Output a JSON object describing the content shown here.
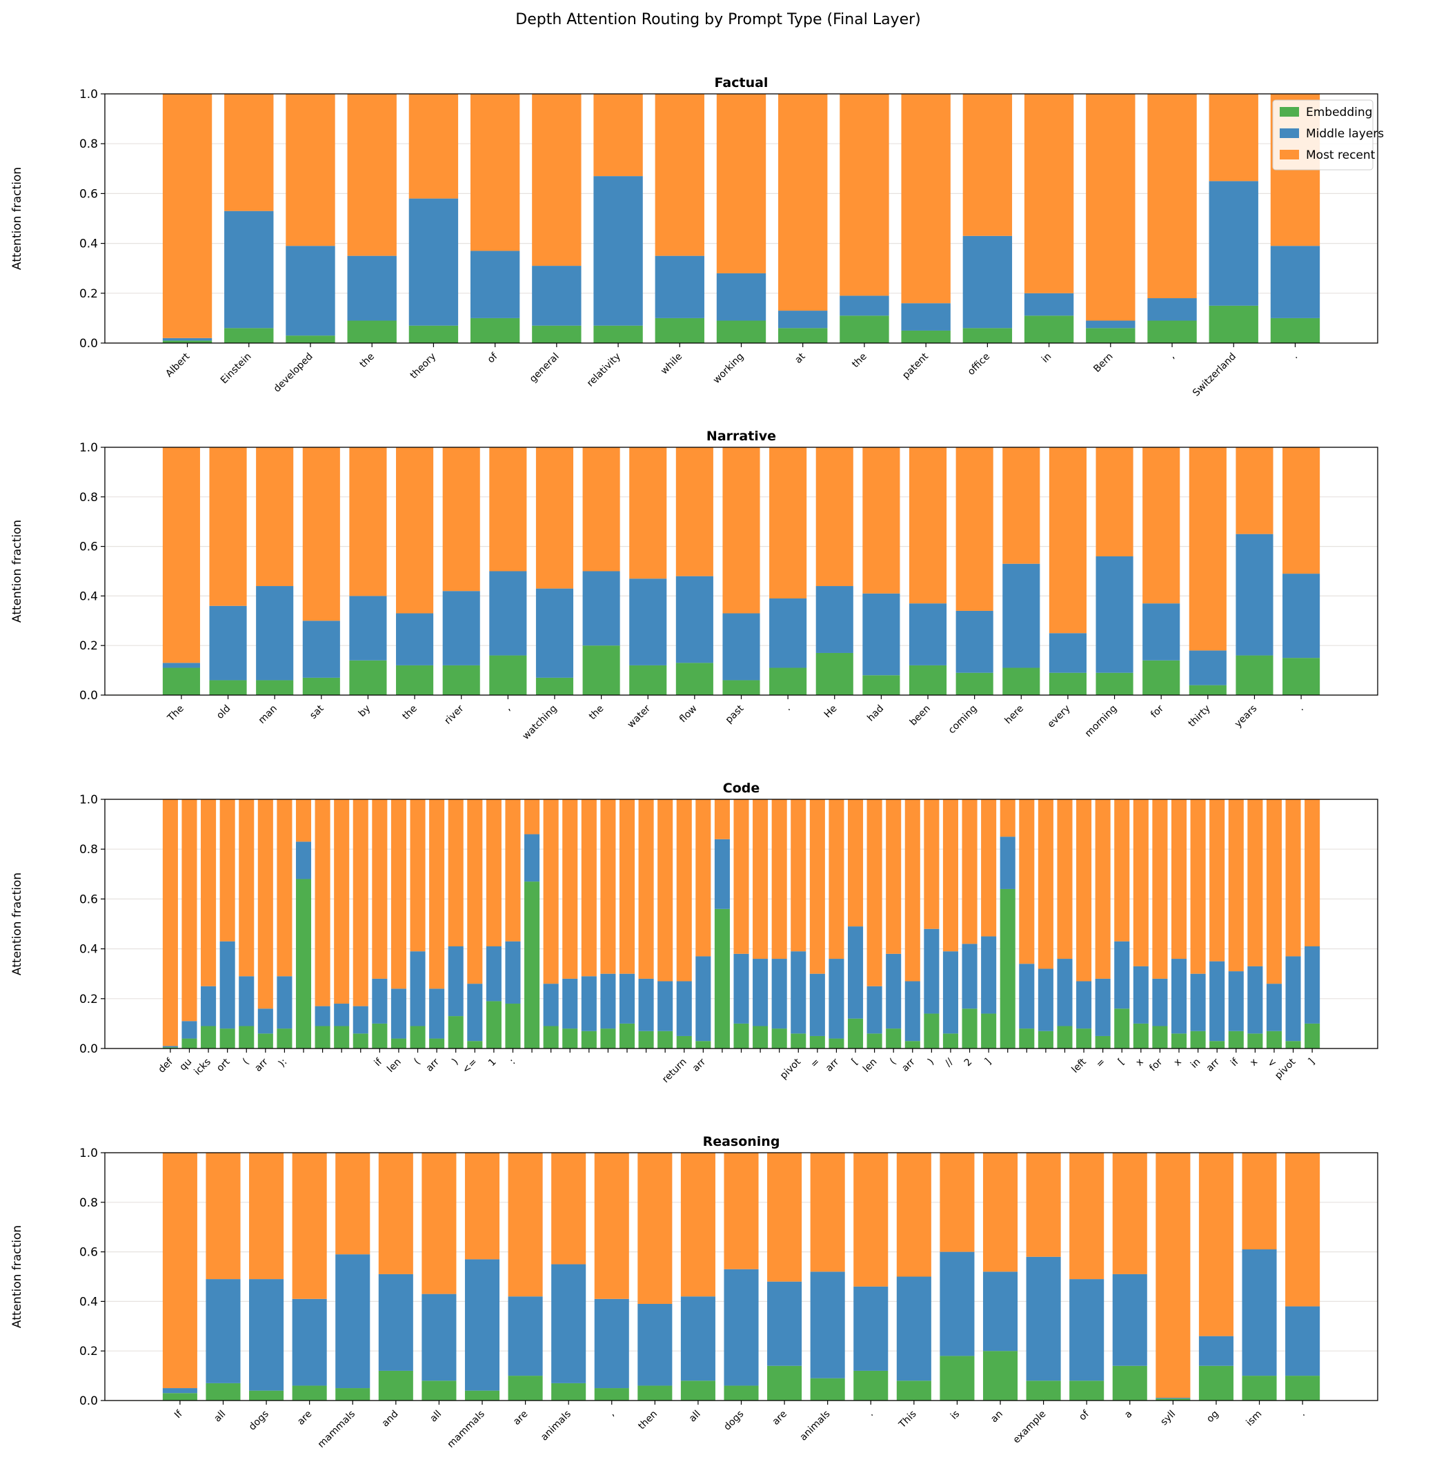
{
  "title": "Depth Attention Routing by Prompt Type (Final Layer)",
  "colors": {
    "Embedding": "#4fae4e",
    "Middle layers": "#4389be",
    "Most recent": "#ff9335"
  },
  "legend": {
    "placement": "upper-right of first panel",
    "entries": [
      "Embedding",
      "Middle layers",
      "Most recent"
    ]
  },
  "chart_data": [
    {
      "type": "bar",
      "stacked": true,
      "title": "Factual",
      "ylabel": "Attention fraction",
      "xlabel": "",
      "ylim": [
        0,
        1
      ],
      "yticks": [
        "0.0",
        "0.2",
        "0.4",
        "0.6",
        "0.8",
        "1.0"
      ],
      "grid": "y",
      "categories": [
        "Albert",
        "Einstein",
        "developed",
        "the",
        "theory",
        "of",
        "general",
        "relativity",
        "while",
        "working",
        "at",
        "the",
        "patent",
        "office",
        "in",
        "Bern",
        ",",
        "Switzerland",
        "."
      ],
      "series": [
        {
          "name": "Embedding",
          "values": [
            0.01,
            0.06,
            0.03,
            0.09,
            0.07,
            0.1,
            0.07,
            0.07,
            0.1,
            0.09,
            0.06,
            0.11,
            0.05,
            0.06,
            0.11,
            0.06,
            0.09,
            0.15,
            0.1
          ]
        },
        {
          "name": "Middle layers",
          "values": [
            0.01,
            0.47,
            0.36,
            0.26,
            0.51,
            0.27,
            0.24,
            0.6,
            0.25,
            0.19,
            0.07,
            0.08,
            0.11,
            0.37,
            0.09,
            0.03,
            0.09,
            0.5,
            0.29
          ]
        },
        {
          "name": "Most recent",
          "values": [
            0.98,
            0.47,
            0.61,
            0.65,
            0.42,
            0.63,
            0.69,
            0.33,
            0.65,
            0.72,
            0.87,
            0.81,
            0.84,
            0.57,
            0.8,
            0.91,
            0.82,
            0.35,
            0.61
          ]
        }
      ]
    },
    {
      "type": "bar",
      "stacked": true,
      "title": "Narrative",
      "ylabel": "Attention fraction",
      "xlabel": "",
      "ylim": [
        0,
        1
      ],
      "yticks": [
        "0.0",
        "0.2",
        "0.4",
        "0.6",
        "0.8",
        "1.0"
      ],
      "grid": "y",
      "categories": [
        "The",
        "old",
        "man",
        "sat",
        "by",
        "the",
        "river",
        ",",
        "watching",
        "the",
        "water",
        "flow",
        "past",
        ".",
        "He",
        "had",
        "been",
        "coming",
        "here",
        "every",
        "morning",
        "for",
        "thirty",
        "years",
        "."
      ],
      "series": [
        {
          "name": "Embedding",
          "values": [
            0.11,
            0.06,
            0.06,
            0.07,
            0.14,
            0.12,
            0.12,
            0.16,
            0.07,
            0.2,
            0.12,
            0.13,
            0.06,
            0.11,
            0.17,
            0.08,
            0.12,
            0.09,
            0.11,
            0.09,
            0.09,
            0.14,
            0.04,
            0.16,
            0.15
          ]
        },
        {
          "name": "Middle layers",
          "values": [
            0.02,
            0.3,
            0.38,
            0.23,
            0.26,
            0.21,
            0.3,
            0.34,
            0.36,
            0.3,
            0.35,
            0.35,
            0.27,
            0.28,
            0.27,
            0.33,
            0.25,
            0.25,
            0.42,
            0.16,
            0.47,
            0.23,
            0.14,
            0.49,
            0.34
          ]
        },
        {
          "name": "Most recent",
          "values": [
            0.87,
            0.64,
            0.56,
            0.7,
            0.6,
            0.67,
            0.58,
            0.5,
            0.57,
            0.5,
            0.53,
            0.52,
            0.67,
            0.61,
            0.56,
            0.59,
            0.63,
            0.66,
            0.47,
            0.75,
            0.44,
            0.63,
            0.82,
            0.35,
            0.51
          ]
        }
      ]
    },
    {
      "type": "bar",
      "stacked": true,
      "title": "Code",
      "ylabel": "Attention fraction",
      "xlabel": "",
      "ylim": [
        0,
        1
      ],
      "yticks": [
        "0.0",
        "0.2",
        "0.4",
        "0.6",
        "0.8",
        "1.0"
      ],
      "grid": "y",
      "categories": [
        "def",
        "qu",
        "icks",
        "ort",
        "(",
        "arr",
        "):",
        "",
        "",
        "",
        "",
        "if",
        "len",
        "(",
        "arr",
        ")",
        "<=",
        "1",
        ":",
        "",
        "",
        "",
        "",
        "",
        "",
        "",
        "",
        "return",
        "arr",
        "",
        "",
        "",
        "",
        "pivot",
        "=",
        "arr",
        "[",
        "len",
        "(",
        "arr",
        ")",
        "//",
        "2",
        "]",
        "",
        "",
        "",
        "",
        "left",
        "=",
        "[",
        "x",
        "for",
        "x",
        "in",
        "arr",
        "if",
        "x",
        "<",
        "pivot",
        "]"
      ],
      "series": [
        {
          "name": "Embedding",
          "values": [
            0.005,
            0.04,
            0.09,
            0.08,
            0.09,
            0.06,
            0.08,
            0.68,
            0.09,
            0.09,
            0.06,
            0.1,
            0.04,
            0.09,
            0.04,
            0.13,
            0.03,
            0.19,
            0.18,
            0.67,
            0.09,
            0.08,
            0.07,
            0.08,
            0.1,
            0.07,
            0.07,
            0.05,
            0.03,
            0.56,
            0.1,
            0.09,
            0.08,
            0.06,
            0.05,
            0.04,
            0.12,
            0.06,
            0.08,
            0.03,
            0.14,
            0.06,
            0.16,
            0.14,
            0.64,
            0.08,
            0.07,
            0.09,
            0.08,
            0.05,
            0.16,
            0.1,
            0.09,
            0.06,
            0.07,
            0.03,
            0.07,
            0.06,
            0.07,
            0.03,
            0.1
          ]
        },
        {
          "name": "Middle layers",
          "values": [
            0.005,
            0.07,
            0.16,
            0.35,
            0.2,
            0.1,
            0.21,
            0.15,
            0.08,
            0.09,
            0.11,
            0.18,
            0.2,
            0.3,
            0.2,
            0.28,
            0.23,
            0.22,
            0.25,
            0.19,
            0.17,
            0.2,
            0.22,
            0.22,
            0.2,
            0.21,
            0.2,
            0.22,
            0.34,
            0.28,
            0.28,
            0.27,
            0.28,
            0.33,
            0.25,
            0.32,
            0.37,
            0.19,
            0.3,
            0.24,
            0.34,
            0.33,
            0.26,
            0.31,
            0.21,
            0.26,
            0.25,
            0.27,
            0.19,
            0.23,
            0.27,
            0.23,
            0.19,
            0.3,
            0.23,
            0.32,
            0.24,
            0.27,
            0.19,
            0.34,
            0.31
          ]
        },
        {
          "name": "Most recent",
          "values": [
            0.99,
            0.89,
            0.75,
            0.57,
            0.71,
            0.84,
            0.71,
            0.17,
            0.83,
            0.82,
            0.83,
            0.72,
            0.76,
            0.61,
            0.76,
            0.59,
            0.74,
            0.59,
            0.57,
            0.14,
            0.74,
            0.72,
            0.71,
            0.7,
            0.7,
            0.72,
            0.73,
            0.73,
            0.63,
            0.16,
            0.62,
            0.64,
            0.64,
            0.61,
            0.7,
            0.64,
            0.51,
            0.75,
            0.62,
            0.73,
            0.52,
            0.61,
            0.58,
            0.55,
            0.15,
            0.66,
            0.68,
            0.64,
            0.73,
            0.72,
            0.57,
            0.67,
            0.72,
            0.64,
            0.7,
            0.65,
            0.69,
            0.67,
            0.74,
            0.63,
            0.59
          ]
        }
      ]
    },
    {
      "type": "bar",
      "stacked": true,
      "title": "Reasoning",
      "ylabel": "Attention fraction",
      "xlabel": "",
      "ylim": [
        0,
        1
      ],
      "yticks": [
        "0.0",
        "0.2",
        "0.4",
        "0.6",
        "0.8",
        "1.0"
      ],
      "grid": "y",
      "categories": [
        "If",
        "all",
        "dogs",
        "are",
        "mammals",
        "and",
        "all",
        "mammals",
        "are",
        "animals",
        ",",
        "then",
        "all",
        "dogs",
        "are",
        "animals",
        ".",
        "This",
        "is",
        "an",
        "example",
        "of",
        "a",
        "syll",
        "og",
        "ism",
        "."
      ],
      "series": [
        {
          "name": "Embedding",
          "values": [
            0.03,
            0.07,
            0.04,
            0.06,
            0.05,
            0.12,
            0.08,
            0.04,
            0.1,
            0.07,
            0.05,
            0.06,
            0.08,
            0.06,
            0.14,
            0.09,
            0.12,
            0.08,
            0.18,
            0.2,
            0.08,
            0.08,
            0.14,
            0.008,
            0.14,
            0.1,
            0.1
          ]
        },
        {
          "name": "Middle layers",
          "values": [
            0.02,
            0.42,
            0.45,
            0.35,
            0.54,
            0.39,
            0.35,
            0.53,
            0.32,
            0.48,
            0.36,
            0.33,
            0.34,
            0.47,
            0.34,
            0.43,
            0.34,
            0.42,
            0.42,
            0.32,
            0.5,
            0.41,
            0.37,
            0.003,
            0.12,
            0.51,
            0.28
          ]
        },
        {
          "name": "Most recent",
          "values": [
            0.95,
            0.51,
            0.51,
            0.59,
            0.41,
            0.49,
            0.57,
            0.43,
            0.58,
            0.45,
            0.59,
            0.61,
            0.58,
            0.47,
            0.52,
            0.48,
            0.54,
            0.5,
            0.4,
            0.48,
            0.42,
            0.51,
            0.49,
            0.989,
            0.74,
            0.39,
            0.62
          ]
        }
      ]
    }
  ]
}
